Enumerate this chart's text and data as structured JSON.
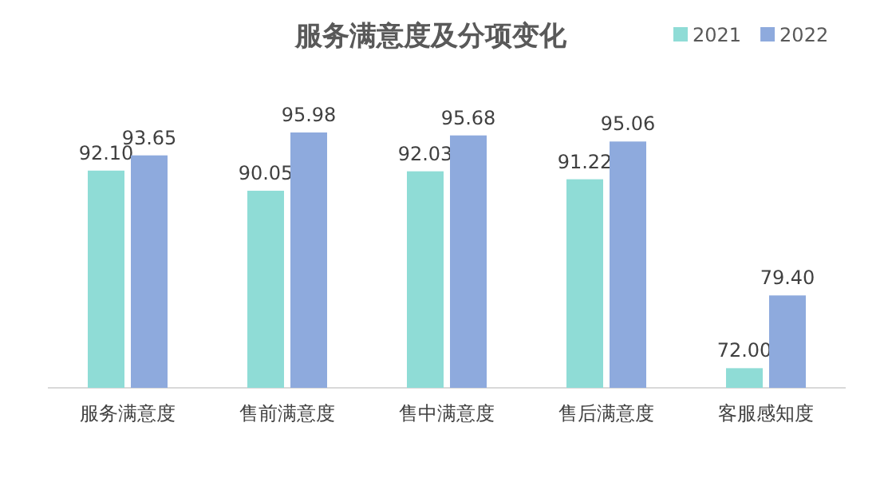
{
  "chart_data": {
    "type": "bar",
    "title": "服务满意度及分项变化",
    "categories": [
      "服务满意度",
      "售前满意度",
      "售中满意度",
      "售后满意度",
      "客服感知度"
    ],
    "series": [
      {
        "name": "2021",
        "color": "#8fdcd6",
        "values": [
          92.1,
          90.05,
          92.03,
          91.22,
          72.0
        ],
        "value_labels": [
          "92.10",
          "90.05",
          "92.03",
          "91.22",
          "72.00"
        ]
      },
      {
        "name": "2022",
        "color": "#8eaadd",
        "values": [
          93.65,
          95.98,
          95.68,
          95.06,
          79.4
        ],
        "value_labels": [
          "93.65",
          "95.98",
          "95.68",
          "95.06",
          "79.40"
        ]
      }
    ],
    "ylim": [
      70,
      95.98
    ],
    "tick_labels": "x",
    "legend": "top right"
  }
}
